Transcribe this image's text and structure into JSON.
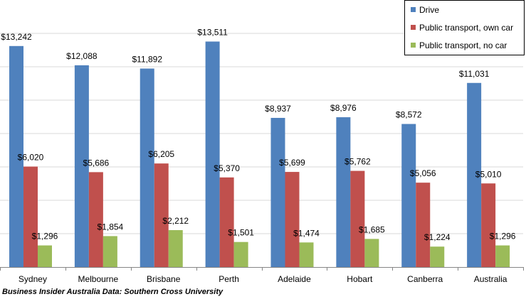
{
  "chart_data": {
    "type": "bar",
    "title": "",
    "xlabel": "",
    "ylabel": "",
    "categories": [
      "Sydney",
      "Melbourne",
      "Brisbane",
      "Perth",
      "Adelaide",
      "Hobart",
      "Canberra",
      "Australia"
    ],
    "series": [
      {
        "name": "Drive",
        "color": "#4F81BD",
        "values": [
          13242,
          12088,
          11892,
          13511,
          8937,
          8976,
          8572,
          11031
        ]
      },
      {
        "name": "Public transport, own car",
        "color": "#C0504D",
        "values": [
          6020,
          5686,
          6205,
          5370,
          5699,
          5762,
          5056,
          5010
        ]
      },
      {
        "name": "Public transport, no car",
        "color": "#9BBB59",
        "values": [
          1296,
          1854,
          2212,
          1501,
          1474,
          1685,
          1224,
          1296
        ]
      }
    ],
    "data_labels": [
      [
        "$13,242",
        "$12,088",
        "$11,892",
        "$13,511",
        "$8,937",
        "$8,976",
        "$8,572",
        "$11,031"
      ],
      [
        "$6,020",
        "$5,686",
        "$6,205",
        "$5,370",
        "$5,699",
        "$5,762",
        "$5,056",
        "$5,010"
      ],
      [
        "$1,296",
        "$1,854",
        "$2,212",
        "$1,501",
        "$1,474",
        "$1,685",
        "$1,224",
        "$1,296"
      ]
    ],
    "ylim": [
      0,
      16000
    ],
    "y_tick_step": 2000,
    "y_axis_labels_visible": false,
    "grid": true,
    "legend_position": "top-right"
  },
  "footer": {
    "source": "Business Insider Australia  Data: Southern Cross University"
  },
  "colors": {
    "gridline": "#D9D9D9",
    "axis": "#868686"
  }
}
